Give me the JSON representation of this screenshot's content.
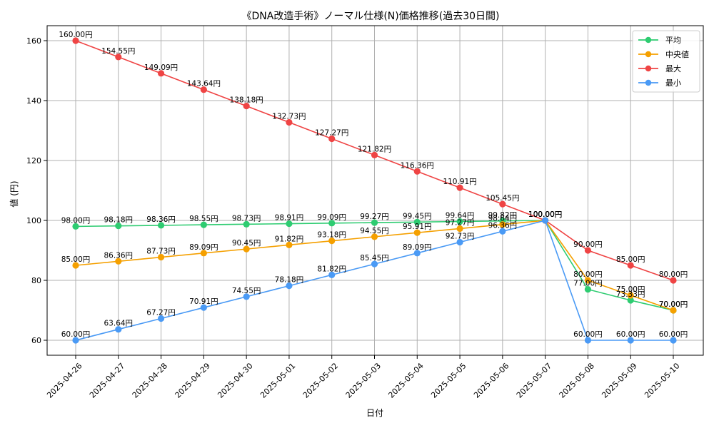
{
  "chart_data": {
    "type": "line",
    "title": "《DNA改造手術》ノーマル仕様(N)価格推移(過去30日間)",
    "xlabel": "日付",
    "ylabel": "値 (円)",
    "ylim": [
      55,
      165
    ],
    "yticks": [
      60,
      80,
      100,
      120,
      140,
      160
    ],
    "grid": true,
    "legend_position": "top-right",
    "categories": [
      "2025-04-26",
      "2025-04-27",
      "2025-04-28",
      "2025-04-29",
      "2025-04-30",
      "2025-05-01",
      "2025-05-02",
      "2025-05-03",
      "2025-05-04",
      "2025-05-05",
      "2025-05-06",
      "2025-05-07",
      "2025-05-08",
      "2025-05-09",
      "2025-05-10"
    ],
    "series": [
      {
        "name": "平均",
        "color": "#2ecc71",
        "values": [
          98.0,
          98.18,
          98.36,
          98.55,
          98.73,
          98.91,
          99.09,
          99.27,
          99.45,
          99.64,
          99.82,
          100.0,
          77.0,
          73.33,
          70.0
        ],
        "labels": [
          "98.00円",
          "98.18円",
          "98.36円",
          "98.55円",
          "98.73円",
          "98.91円",
          "99.09円",
          "99.27円",
          "99.45円",
          "99.64円",
          "99.82円",
          "100.00円",
          "77.00円",
          "73.33円",
          "70.00円"
        ]
      },
      {
        "name": "中央値",
        "color": "#f5a000",
        "values": [
          85.0,
          86.36,
          87.73,
          89.09,
          90.45,
          91.82,
          93.18,
          94.55,
          95.91,
          97.27,
          98.64,
          100.0,
          80.0,
          75.0,
          70.0
        ],
        "labels": [
          "85.00円",
          "86.36円",
          "87.73円",
          "89.09円",
          "90.45円",
          "91.82円",
          "93.18円",
          "94.55円",
          "95.91円",
          "97.27円",
          "98.64円",
          "100.00円",
          "80.00円",
          "75.00円",
          "70.00円"
        ]
      },
      {
        "name": "最大",
        "color": "#ef4444",
        "values": [
          160.0,
          154.55,
          149.09,
          143.64,
          138.18,
          132.73,
          127.27,
          121.82,
          116.36,
          110.91,
          105.45,
          100.0,
          90.0,
          85.0,
          80.0
        ],
        "labels": [
          "160.00円",
          "154.55円",
          "149.09円",
          "143.64円",
          "138.18円",
          "132.73円",
          "127.27円",
          "121.82円",
          "116.36円",
          "110.91円",
          "105.45円",
          "100.00円",
          "90.00円",
          "85.00円",
          "80.00円"
        ]
      },
      {
        "name": "最小",
        "color": "#4a9af5",
        "values": [
          60.0,
          63.64,
          67.27,
          70.91,
          74.55,
          78.18,
          81.82,
          85.45,
          89.09,
          92.73,
          96.36,
          100.0,
          60.0,
          60.0,
          60.0
        ],
        "labels": [
          "60.00円",
          "63.64円",
          "67.27円",
          "70.91円",
          "74.55円",
          "78.18円",
          "81.82円",
          "85.45円",
          "89.09円",
          "92.73円",
          "96.36円",
          "100.00円",
          "60.00円",
          "60.00円",
          "60.00円"
        ]
      }
    ]
  }
}
